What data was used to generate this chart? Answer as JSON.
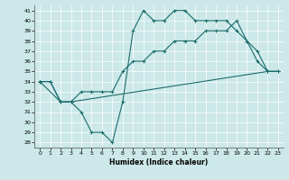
{
  "xlabel": "Humidex (Indice chaleur)",
  "bg_color": "#cce8e8",
  "line_color": "#1a6b6b",
  "xlim": [
    -0.5,
    23.5
  ],
  "ylim": [
    27.5,
    41.5
  ],
  "yticks": [
    28,
    29,
    30,
    31,
    32,
    33,
    34,
    35,
    36,
    37,
    38,
    39,
    40,
    41
  ],
  "xticks": [
    0,
    1,
    2,
    3,
    4,
    5,
    6,
    7,
    8,
    9,
    10,
    11,
    12,
    13,
    14,
    15,
    16,
    17,
    18,
    19,
    20,
    21,
    22,
    23
  ],
  "line1_x": [
    0,
    1,
    2,
    3,
    22,
    23
  ],
  "line1_y": [
    34,
    34,
    32,
    32,
    35,
    35
  ],
  "line2_x": [
    0,
    2,
    3,
    4,
    5,
    6,
    7,
    8,
    9,
    10,
    11,
    12,
    13,
    14,
    15,
    16,
    17,
    18,
    19,
    20,
    21,
    22,
    23
  ],
  "line2_y": [
    34,
    32,
    32,
    31,
    29,
    29,
    28,
    32,
    39,
    41,
    40,
    40,
    41,
    41,
    40,
    40,
    40,
    40,
    39,
    38,
    37,
    35,
    35
  ],
  "line3_x": [
    0,
    1,
    2,
    3,
    4,
    5,
    6,
    7,
    8,
    9,
    10,
    11,
    12,
    13,
    14,
    15,
    16,
    17,
    18,
    19,
    20,
    21,
    22,
    23
  ],
  "line3_y": [
    34,
    34,
    32,
    32,
    33,
    33,
    33,
    33,
    35,
    36,
    36,
    37,
    37,
    38,
    38,
    38,
    39,
    39,
    39,
    40,
    38,
    36,
    35,
    35
  ]
}
